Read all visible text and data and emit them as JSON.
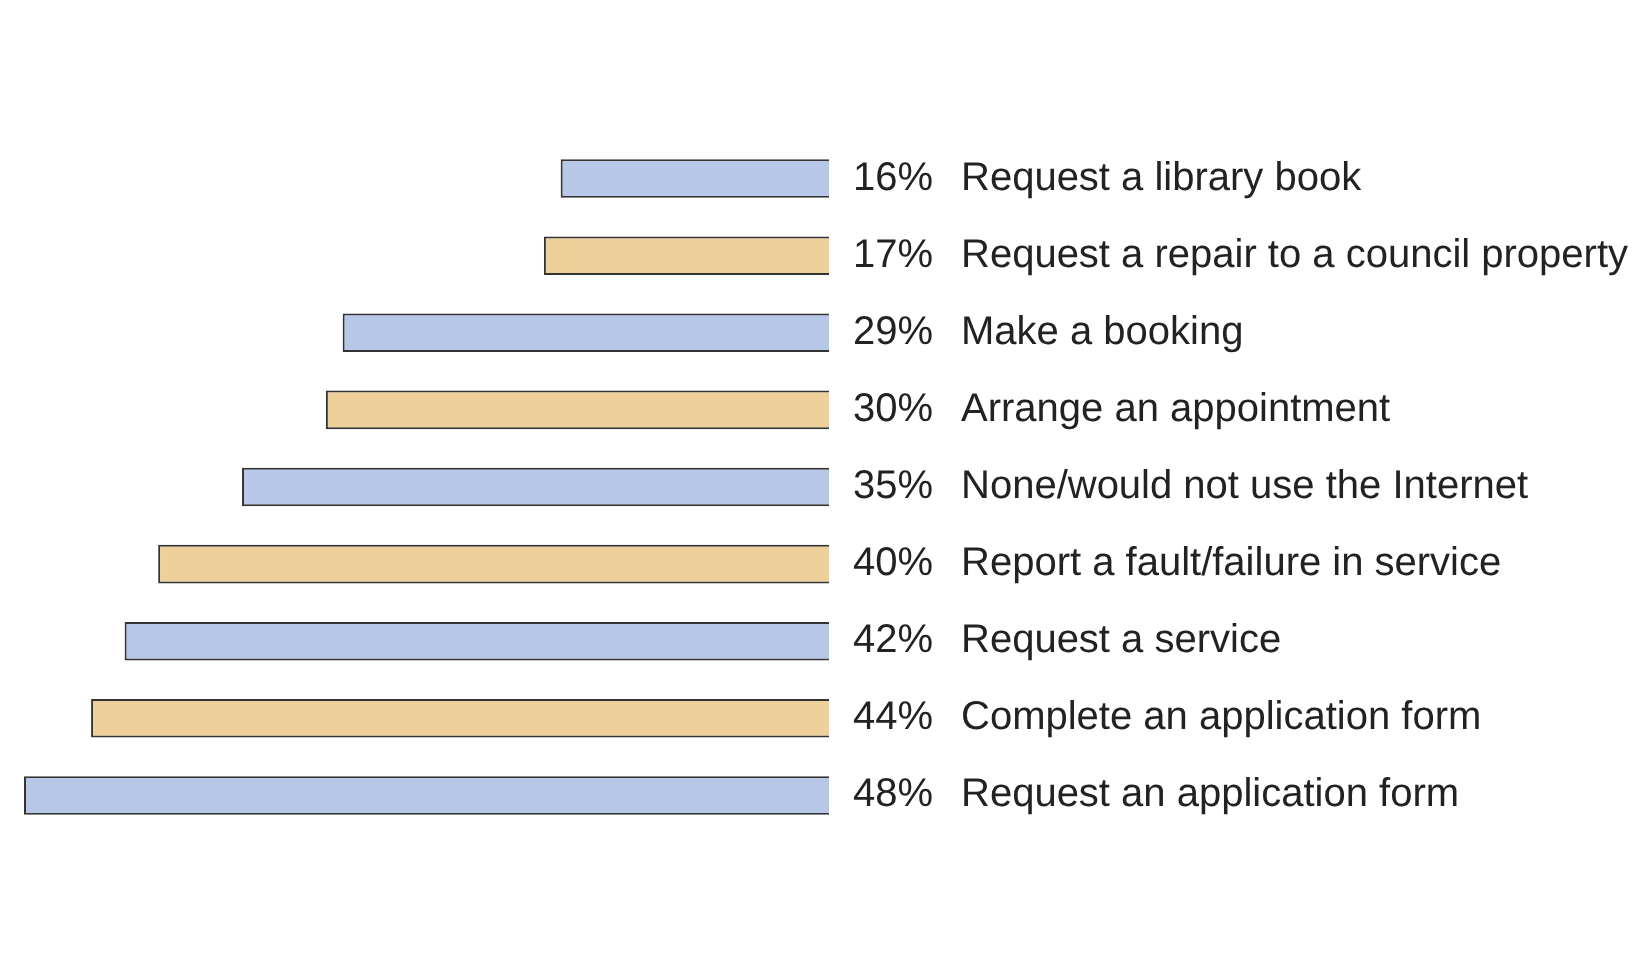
{
  "chart_data": {
    "type": "bar",
    "orientation": "horizontal",
    "categories": [
      "Request a library book",
      "Request a repair to a council property",
      "Make a booking",
      "Arrange an appointment",
      "None/would not use the Internet",
      "Report a fault/failure in service",
      "Request a service",
      "Complete an application form",
      "Request an application form"
    ],
    "values": [
      16,
      17,
      29,
      30,
      35,
      40,
      42,
      44,
      48
    ],
    "value_labels": [
      "16%",
      "17%",
      "29%",
      "30%",
      "35%",
      "40%",
      "42%",
      "44%",
      "48%"
    ],
    "colors": [
      "#b6c7e8",
      "#edd09a",
      "#b6c7e8",
      "#edd09a",
      "#b6c7e8",
      "#edd09a",
      "#b6c7e8",
      "#edd09a",
      "#b6c7e8"
    ],
    "grid": false,
    "legend": false
  }
}
